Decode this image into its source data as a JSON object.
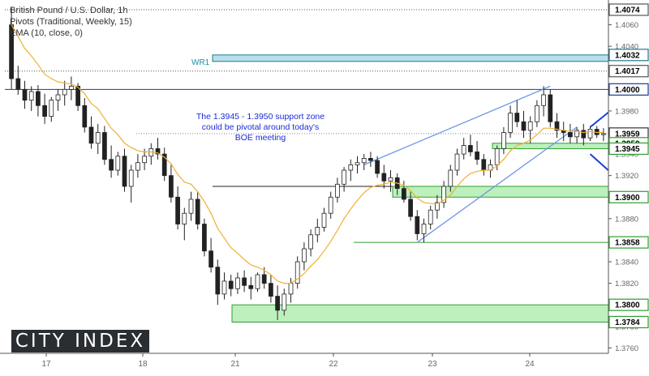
{
  "legend": {
    "line1": "British Pound / U.S. Dollar, 1h",
    "line2": "Pivots (Traditional, Weekly, 15)",
    "line3": "EMA (10, close, 0)"
  },
  "logo_text": "CITY INDEX",
  "annotation": {
    "line1": "The 1.3945 - 1.3950 support zone",
    "line2": "could be pivotal around today's",
    "line3": "BOE meeting"
  },
  "wr1_label": "WR1",
  "chart_data": {
    "type": "candlestick",
    "ylim": [
      1.3755,
      1.408
    ],
    "y_ticks": [
      "1.4060",
      "1.4040",
      "1.4020",
      "1.4000",
      "1.3980",
      "1.3960",
      "1.3940",
      "1.3920",
      "1.3900",
      "1.3880",
      "1.3860",
      "1.3840",
      "1.3820",
      "1.3800",
      "1.3780",
      "1.3760"
    ],
    "x_tick_labels": [
      "17",
      "18",
      "21",
      "22",
      "23",
      "24"
    ],
    "price_labels": [
      {
        "text": "1.4074",
        "value": 1.4074,
        "color": "#ffffff",
        "text_color": "#000000",
        "border": "#555555"
      },
      {
        "text": "1.4032",
        "value": 1.4032,
        "color": "#ffffff",
        "text_color": "#000000",
        "border": "#1e7a8c"
      },
      {
        "text": "1.4017",
        "value": 1.4017,
        "color": "#ffffff",
        "text_color": "#000000",
        "border": "#555555"
      },
      {
        "text": "1.4000",
        "value": 1.4,
        "color": "#ffffff",
        "text_color": "#000000",
        "border": "#1e3a8c"
      },
      {
        "text": "1.3959",
        "value": 1.3959,
        "color": "#ffffff",
        "text_color": "#000000",
        "border": "#333333"
      },
      {
        "text": "1.3950",
        "value": 1.395,
        "color": "#ffffff",
        "text_color": "#000000",
        "border": "#2e9e2e"
      },
      {
        "text": "1.3945",
        "value": 1.3945,
        "color": "#ffffff",
        "text_color": "#000000",
        "border": "#2e9e2e"
      },
      {
        "text": "1.3900",
        "value": 1.39,
        "color": "#ffffff",
        "text_color": "#000000",
        "border": "#2e9e2e"
      },
      {
        "text": "1.3858",
        "value": 1.3858,
        "color": "#ffffff",
        "text_color": "#000000",
        "border": "#2e9e2e"
      },
      {
        "text": "1.3800",
        "value": 1.38,
        "color": "#ffffff",
        "text_color": "#000000",
        "border": "#2e9e2e"
      },
      {
        "text": "1.3784",
        "value": 1.3784,
        "color": "#ffffff",
        "text_color": "#000000",
        "border": "#2e9e2e"
      }
    ],
    "levels": [
      {
        "value": 1.4074,
        "style": "dotted",
        "color": "#555555"
      },
      {
        "value": 1.4017,
        "style": "dotted",
        "color": "#555555"
      },
      {
        "value": 1.4,
        "style": "solid",
        "color": "#1e3a8c"
      },
      {
        "value": 1.3959,
        "style": "dotted",
        "color": "#888888"
      },
      {
        "value": 1.391,
        "style": "solid",
        "color": "#222222"
      },
      {
        "value": 1.3858,
        "style": "solid",
        "color": "#2e9e2e"
      }
    ],
    "zones": [
      {
        "name": "WR1",
        "from": 1.4026,
        "to": 1.4032,
        "color": "#b8e0e8",
        "border": "#1e7a8c"
      },
      {
        "name": "support-1",
        "from": 1.3945,
        "to": 1.395,
        "color": "#bdf0bd",
        "border": "#2e9e2e"
      },
      {
        "name": "support-2",
        "from": 1.39,
        "to": 1.391,
        "color": "#bdf0bd",
        "border": "#2e9e2e"
      },
      {
        "name": "support-3",
        "from": 1.3784,
        "to": 1.38,
        "color": "#bdf0bd",
        "border": "#2e9e2e"
      }
    ],
    "candles": [
      [
        1.406,
        1.4076,
        1.4,
        1.401
      ],
      [
        1.401,
        1.4022,
        1.3995,
        1.4
      ],
      [
        1.4,
        1.4008,
        1.3982,
        1.399
      ],
      [
        1.399,
        1.4003,
        1.398,
        1.3998
      ],
      [
        1.3998,
        1.4004,
        1.3975,
        1.3985
      ],
      [
        1.3985,
        1.3996,
        1.3968,
        1.3975
      ],
      [
        1.3975,
        1.3993,
        1.397,
        1.399
      ],
      [
        1.399,
        1.4,
        1.398,
        1.3995
      ],
      [
        1.3995,
        1.4008,
        1.3985,
        1.4
      ],
      [
        1.4,
        1.4012,
        1.399,
        1.4003
      ],
      [
        1.4003,
        1.4006,
        1.398,
        1.3985
      ],
      [
        1.3985,
        1.3992,
        1.396,
        1.3965
      ],
      [
        1.3965,
        1.3975,
        1.3945,
        1.395
      ],
      [
        1.395,
        1.3968,
        1.394,
        1.396
      ],
      [
        1.396,
        1.3966,
        1.393,
        1.3935
      ],
      [
        1.3935,
        1.3948,
        1.3918,
        1.3925
      ],
      [
        1.3925,
        1.3942,
        1.392,
        1.3938
      ],
      [
        1.3938,
        1.3945,
        1.3905,
        1.391
      ],
      [
        1.391,
        1.393,
        1.3895,
        1.3925
      ],
      [
        1.3925,
        1.394,
        1.3918,
        1.3932
      ],
      [
        1.3932,
        1.3945,
        1.3925,
        1.3938
      ],
      [
        1.3938,
        1.395,
        1.393,
        1.3945
      ],
      [
        1.3945,
        1.3955,
        1.3935,
        1.394
      ],
      [
        1.394,
        1.3946,
        1.3915,
        1.392
      ],
      [
        1.392,
        1.393,
        1.3895,
        1.39
      ],
      [
        1.39,
        1.391,
        1.387,
        1.3875
      ],
      [
        1.3875,
        1.389,
        1.386,
        1.3885
      ],
      [
        1.3885,
        1.3905,
        1.3878,
        1.3898
      ],
      [
        1.3898,
        1.3905,
        1.387,
        1.3875
      ],
      [
        1.3875,
        1.388,
        1.3845,
        1.385
      ],
      [
        1.385,
        1.3862,
        1.383,
        1.3835
      ],
      [
        1.3835,
        1.3842,
        1.38,
        1.381
      ],
      [
        1.381,
        1.383,
        1.3805,
        1.3822
      ],
      [
        1.3822,
        1.3828,
        1.3808,
        1.3815
      ],
      [
        1.3815,
        1.383,
        1.381,
        1.3825
      ],
      [
        1.3825,
        1.3832,
        1.3812,
        1.3818
      ],
      [
        1.3818,
        1.3826,
        1.3805,
        1.3815
      ],
      [
        1.3815,
        1.383,
        1.3812,
        1.3828
      ],
      [
        1.3828,
        1.3835,
        1.3815,
        1.382
      ],
      [
        1.382,
        1.3828,
        1.3802,
        1.3808
      ],
      [
        1.3808,
        1.3818,
        1.3786,
        1.3795
      ],
      [
        1.3795,
        1.3815,
        1.379,
        1.381
      ],
      [
        1.381,
        1.3825,
        1.3802,
        1.382
      ],
      [
        1.382,
        1.3845,
        1.3815,
        1.384
      ],
      [
        1.384,
        1.3858,
        1.3832,
        1.3852
      ],
      [
        1.3852,
        1.387,
        1.3845,
        1.3865
      ],
      [
        1.3865,
        1.388,
        1.3858,
        1.3872
      ],
      [
        1.3872,
        1.389,
        1.3868,
        1.3885
      ],
      [
        1.3885,
        1.3905,
        1.388,
        1.39
      ],
      [
        1.39,
        1.3918,
        1.3895,
        1.3912
      ],
      [
        1.3912,
        1.3928,
        1.3905,
        1.3925
      ],
      [
        1.3925,
        1.3935,
        1.3915,
        1.393
      ],
      [
        1.393,
        1.3938,
        1.3922,
        1.3932
      ],
      [
        1.3932,
        1.394,
        1.3925,
        1.3936
      ],
      [
        1.3936,
        1.3942,
        1.3928,
        1.3934
      ],
      [
        1.3934,
        1.3938,
        1.3918,
        1.3922
      ],
      [
        1.3922,
        1.393,
        1.3908,
        1.3915
      ],
      [
        1.3915,
        1.3925,
        1.3905,
        1.3918
      ],
      [
        1.3918,
        1.3922,
        1.3902,
        1.3908
      ],
      [
        1.3908,
        1.3915,
        1.3895,
        1.3898
      ],
      [
        1.3898,
        1.3905,
        1.3878,
        1.3882
      ],
      [
        1.3882,
        1.3888,
        1.386,
        1.3866
      ],
      [
        1.3866,
        1.388,
        1.3858,
        1.3875
      ],
      [
        1.3875,
        1.3892,
        1.387,
        1.3888
      ],
      [
        1.3888,
        1.3902,
        1.388,
        1.3895
      ],
      [
        1.3895,
        1.3915,
        1.389,
        1.391
      ],
      [
        1.391,
        1.393,
        1.3905,
        1.3925
      ],
      [
        1.3925,
        1.3945,
        1.392,
        1.394
      ],
      [
        1.394,
        1.3955,
        1.3935,
        1.3948
      ],
      [
        1.3948,
        1.3958,
        1.3938,
        1.3942
      ],
      [
        1.3942,
        1.3952,
        1.393,
        1.3935
      ],
      [
        1.3935,
        1.394,
        1.392,
        1.3925
      ],
      [
        1.3925,
        1.3935,
        1.3918,
        1.393
      ],
      [
        1.393,
        1.3948,
        1.3925,
        1.3945
      ],
      [
        1.3945,
        1.3965,
        1.394,
        1.396
      ],
      [
        1.396,
        1.3985,
        1.3955,
        1.3978
      ],
      [
        1.3978,
        1.399,
        1.3965,
        1.397
      ],
      [
        1.397,
        1.398,
        1.3955,
        1.3962
      ],
      [
        1.3962,
        1.3975,
        1.395,
        1.397
      ],
      [
        1.397,
        1.399,
        1.3965,
        1.3985
      ],
      [
        1.3985,
        1.4003,
        1.3975,
        1.3995
      ],
      [
        1.3995,
        1.4,
        1.3965,
        1.397
      ],
      [
        1.397,
        1.3978,
        1.3955,
        1.3962
      ],
      [
        1.3962,
        1.397,
        1.3952,
        1.396
      ],
      [
        1.396,
        1.3968,
        1.395,
        1.3956
      ],
      [
        1.3956,
        1.3965,
        1.395,
        1.3962
      ],
      [
        1.3962,
        1.3968,
        1.3948,
        1.3955
      ],
      [
        1.3955,
        1.3966,
        1.3952,
        1.3963
      ],
      [
        1.3963,
        1.3966,
        1.3955,
        1.3958
      ],
      [
        1.3958,
        1.3964,
        1.3952,
        1.3959
      ]
    ],
    "ema": [
      1.406,
      1.4049,
      1.4038,
      1.4031,
      1.4023,
      1.4014,
      1.401,
      1.4007,
      1.4006,
      1.4005,
      1.4002,
      1.3996,
      1.3987,
      1.3982,
      1.3973,
      1.3964,
      1.3958,
      1.395,
      1.3946,
      1.3943,
      1.3942,
      1.3942,
      1.3941,
      1.3937,
      1.3931,
      1.3921,
      1.3914,
      1.3912,
      1.3905,
      1.3896,
      1.3885,
      1.3871,
      1.3862,
      1.3853,
      1.3848,
      1.3842,
      1.3837,
      1.3835,
      1.3832,
      1.3828,
      1.3822,
      1.382,
      1.382,
      1.3824,
      1.3829,
      1.3836,
      1.3842,
      1.385,
      1.3859,
      1.3869,
      1.388,
      1.3889,
      1.3897,
      1.3904,
      1.3909,
      1.3911,
      1.3912,
      1.3914,
      1.3913,
      1.3911,
      1.3906,
      1.3899,
      1.3895,
      1.3894,
      1.3894,
      1.3897,
      1.3902,
      1.391,
      1.3917,
      1.3922,
      1.3924,
      1.3925,
      1.3925,
      1.3929,
      1.3935,
      1.3943,
      1.3948,
      1.395,
      1.3953,
      1.3958,
      1.3964,
      1.3964,
      1.3963,
      1.3962,
      1.3961,
      1.3961,
      1.396,
      1.3961,
      1.396,
      1.396
    ],
    "trendlines": [
      {
        "name": "upper-wedge-line",
        "from": [
          53,
          1.393
        ],
        "to": [
          81,
          1.4003
        ]
      },
      {
        "name": "lower-wedge-line",
        "from": [
          61,
          1.3858
        ],
        "to": [
          85,
          1.3965
        ]
      }
    ],
    "arrows": [
      {
        "name": "up-arrow",
        "from": [
          87,
          1.3965
        ],
        "to": [
          91,
          1.3985
        ]
      },
      {
        "name": "down-arrow",
        "from": [
          87,
          1.394
        ],
        "to": [
          91,
          1.3918
        ]
      }
    ]
  }
}
